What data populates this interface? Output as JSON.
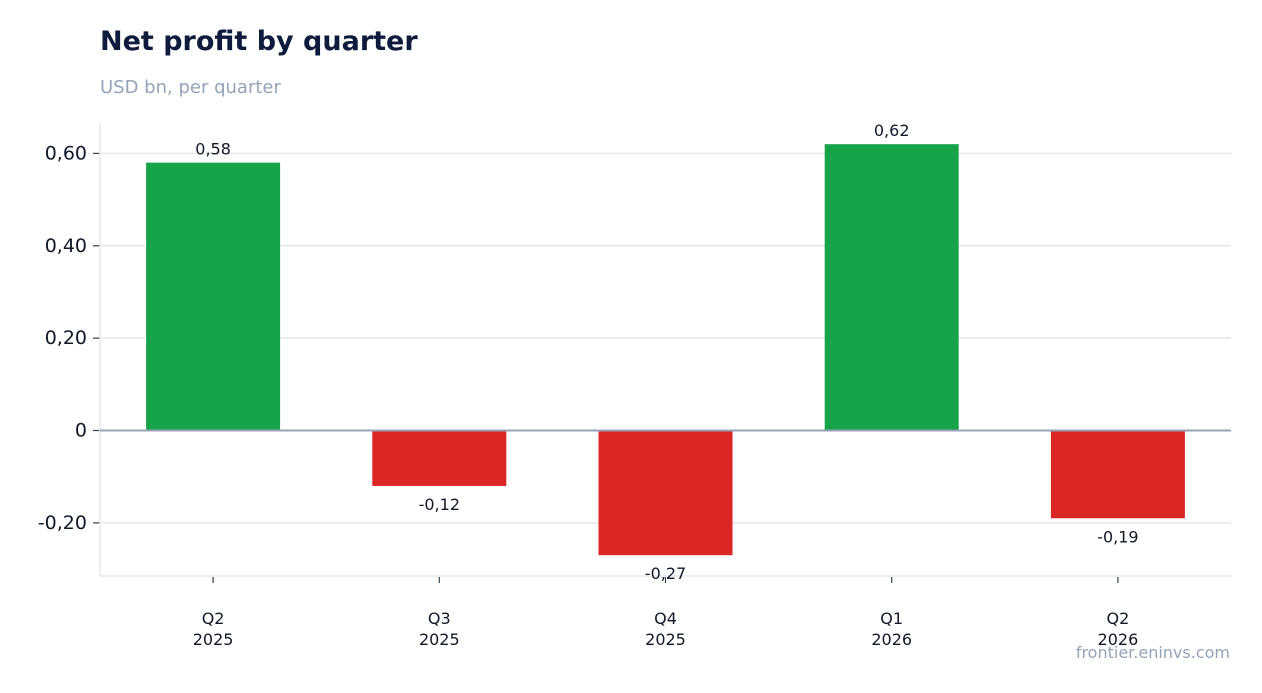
{
  "chart_data": {
    "type": "bar",
    "title": "Net profit by quarter",
    "subtitle": "USD bn, per quarter",
    "source": "frontier.eninvs.com",
    "categories": [
      {
        "quarter": "Q2",
        "year": "2025"
      },
      {
        "quarter": "Q3",
        "year": "2025"
      },
      {
        "quarter": "Q4",
        "year": "2025"
      },
      {
        "quarter": "Q1",
        "year": "2026"
      },
      {
        "quarter": "Q2",
        "year": "2026"
      }
    ],
    "values": [
      0.58,
      -0.12,
      -0.27,
      0.62,
      -0.19
    ],
    "value_labels": [
      "0,58",
      "-0,12",
      "-0,27",
      "0,62",
      "-0,19"
    ],
    "y_ticks": [
      {
        "value": 0.6,
        "label": "0,60"
      },
      {
        "value": 0.4,
        "label": "0,40"
      },
      {
        "value": 0.2,
        "label": "0,20"
      },
      {
        "value": 0,
        "label": "0"
      },
      {
        "value": -0.2,
        "label": "-0,20"
      }
    ],
    "ylim": [
      -0.315,
      0.668
    ],
    "grid": true,
    "colors": {
      "positive": "#17a34a",
      "negative": "#dc2626",
      "zero_line": "#94a3b8",
      "grid": "#e5e7eb"
    }
  }
}
